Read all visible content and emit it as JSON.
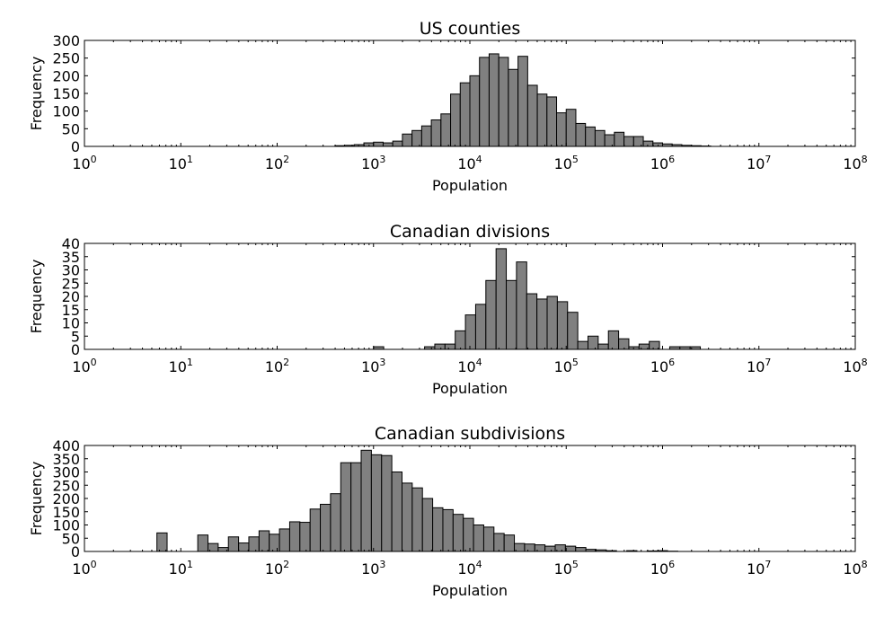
{
  "chart_data": [
    {
      "type": "bar",
      "title": "US counties",
      "xlabel": "Population",
      "ylabel": "Frequency",
      "xscale": "log",
      "xlim": [
        1,
        100000000
      ],
      "ylim": [
        0,
        300
      ],
      "yticks": [
        0,
        50,
        100,
        150,
        200,
        250,
        300
      ],
      "xtick_labels": [
        {
          "base": "10",
          "exp": "0"
        },
        {
          "base": "10",
          "exp": "1"
        },
        {
          "base": "10",
          "exp": "2"
        },
        {
          "base": "10",
          "exp": "3"
        },
        {
          "base": "10",
          "exp": "4"
        },
        {
          "base": "10",
          "exp": "5"
        },
        {
          "base": "10",
          "exp": "6"
        },
        {
          "base": "10",
          "exp": "7"
        },
        {
          "base": "10",
          "exp": "8"
        }
      ],
      "bin_start_log10": 2.6,
      "bin_width_log10": 0.1,
      "values": [
        2,
        3,
        5,
        10,
        12,
        10,
        15,
        35,
        45,
        58,
        75,
        92,
        148,
        180,
        200,
        252,
        262,
        252,
        218,
        255,
        173,
        148,
        140,
        95,
        105,
        65,
        55,
        45,
        33,
        40,
        28,
        28,
        15,
        10,
        7,
        5,
        3,
        2,
        1
      ]
    },
    {
      "type": "bar",
      "title": "Canadian divisions",
      "xlabel": "Population",
      "ylabel": "Frequency",
      "xscale": "log",
      "xlim": [
        1,
        100000000
      ],
      "ylim": [
        0,
        40
      ],
      "yticks": [
        0,
        5,
        10,
        15,
        20,
        25,
        30,
        35,
        40
      ],
      "xtick_labels": [
        {
          "base": "10",
          "exp": "0"
        },
        {
          "base": "10",
          "exp": "1"
        },
        {
          "base": "10",
          "exp": "2"
        },
        {
          "base": "10",
          "exp": "3"
        },
        {
          "base": "10",
          "exp": "4"
        },
        {
          "base": "10",
          "exp": "5"
        },
        {
          "base": "10",
          "exp": "6"
        },
        {
          "base": "10",
          "exp": "7"
        },
        {
          "base": "10",
          "exp": "8"
        }
      ],
      "bin_start_log10": 3.0,
      "bin_width_log10": 0.106,
      "values": [
        1,
        0,
        0,
        0,
        0,
        1,
        2,
        2,
        7,
        13,
        17,
        26,
        38,
        26,
        33,
        21,
        19,
        20,
        18,
        14,
        3,
        5,
        2,
        7,
        4,
        1,
        2,
        3,
        0,
        1,
        1,
        1
      ]
    },
    {
      "type": "bar",
      "title": "Canadian subdivisions",
      "xlabel": "Population",
      "ylabel": "Frequency",
      "xscale": "log",
      "xlim": [
        1,
        100000000
      ],
      "ylim": [
        0,
        400
      ],
      "yticks": [
        0,
        50,
        100,
        150,
        200,
        250,
        300,
        350,
        400
      ],
      "xtick_labels": [
        {
          "base": "10",
          "exp": "0"
        },
        {
          "base": "10",
          "exp": "1"
        },
        {
          "base": "10",
          "exp": "2"
        },
        {
          "base": "10",
          "exp": "3"
        },
        {
          "base": "10",
          "exp": "4"
        },
        {
          "base": "10",
          "exp": "5"
        },
        {
          "base": "10",
          "exp": "6"
        },
        {
          "base": "10",
          "exp": "7"
        },
        {
          "base": "10",
          "exp": "8"
        }
      ],
      "bin_start_log10": 0.54,
      "bin_width_log10": 0.106,
      "values": [
        0,
        0,
        70,
        0,
        0,
        0,
        62,
        30,
        15,
        55,
        32,
        55,
        78,
        65,
        85,
        112,
        110,
        160,
        178,
        218,
        335,
        335,
        382,
        365,
        362,
        300,
        258,
        240,
        200,
        165,
        158,
        140,
        125,
        100,
        92,
        68,
        62,
        30,
        28,
        25,
        20,
        25,
        20,
        15,
        8,
        6,
        3,
        0,
        3,
        0,
        2,
        3,
        1
      ]
    }
  ]
}
